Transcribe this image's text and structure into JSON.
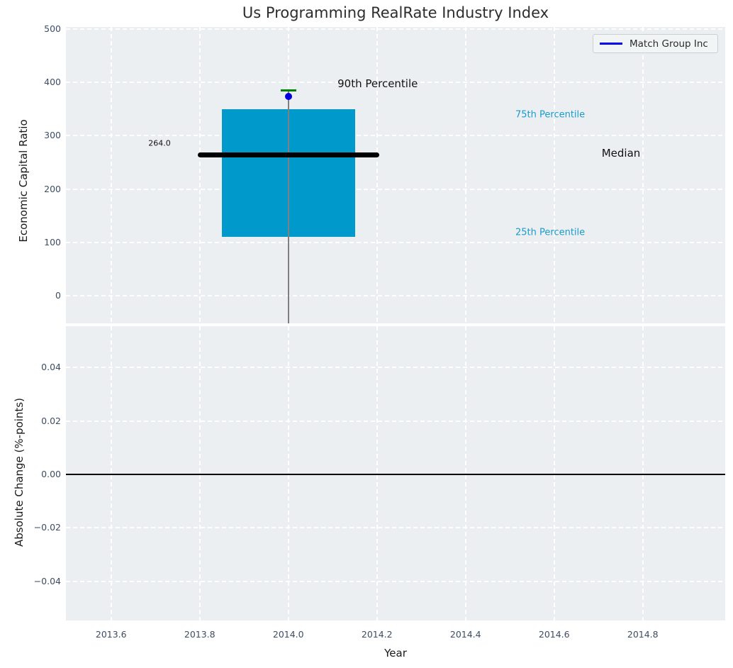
{
  "title": "Us Programming RealRate Industry Index",
  "legend": {
    "label": "Match Group Inc"
  },
  "colors": {
    "axes_bg": "#eceff1",
    "grid": "#ffffff",
    "box_fill": "#0099cc",
    "median_line": "#000000",
    "cap_line": "#008000",
    "stem_line": "#808080",
    "company_dot": "#0000dd",
    "legend_line": "#0000ee",
    "percentile_text": "#1a9bcb",
    "tick_text": "#3d4d63",
    "zero_line": "#000000"
  },
  "chart_data": [
    {
      "type": "box",
      "title": "Us Programming RealRate Industry Index",
      "ylabel": "Economic Capital Ratio",
      "grid": true,
      "legend_entries": [
        "Match Group Inc"
      ],
      "legend_position": "upper right",
      "x": 2014.0,
      "box": {
        "q1": 110,
        "median": 264,
        "q3": 350,
        "p90": 385,
        "box_width_years": 0.3,
        "median_line_width_years": 0.41,
        "cap_width_years": 0.036
      },
      "series": [
        {
          "name": "Match Group Inc",
          "x": 2014.0,
          "value": 374
        }
      ],
      "annotations": [
        {
          "id": "median_value",
          "text": "264.0"
        },
        {
          "id": "p90",
          "text": "90th Percentile"
        },
        {
          "id": "p75",
          "text": "75th Percentile"
        },
        {
          "id": "median",
          "text": "Median"
        },
        {
          "id": "p25",
          "text": "25th Percentile"
        }
      ],
      "yticks": [
        0,
        100,
        200,
        300,
        400,
        500
      ],
      "ytick_labels": [
        "0",
        "100",
        "200",
        "300",
        "400",
        "500"
      ],
      "xticks": [
        2013.6,
        2013.8,
        2014.0,
        2014.2,
        2014.4,
        2014.6,
        2014.8
      ],
      "xtick_labels": [
        "2013.6",
        "2013.8",
        "2014.0",
        "2014.2",
        "2014.4",
        "2014.6",
        "2014.8"
      ],
      "ylim": [
        -51.5,
        503.5
      ],
      "xlim": [
        2013.498,
        2014.986
      ]
    },
    {
      "type": "line",
      "ylabel": "Absolute Change (%-points)",
      "xlabel": "Year",
      "grid": true,
      "series": [],
      "zero_line_y": 0.0,
      "yticks": [
        0.04,
        0.02,
        0.0,
        -0.02,
        -0.04
      ],
      "ytick_labels": [
        "0.04",
        "0.02",
        "0.00",
        "−0.02",
        "−0.04"
      ],
      "xticks": [
        2013.6,
        2013.8,
        2014.0,
        2014.2,
        2014.4,
        2014.6,
        2014.8
      ],
      "xtick_labels": [
        "2013.6",
        "2013.8",
        "2014.0",
        "2014.2",
        "2014.4",
        "2014.6",
        "2014.8"
      ],
      "ylim": [
        -0.0546,
        0.0554
      ],
      "xlim": [
        2013.498,
        2014.986
      ]
    }
  ]
}
